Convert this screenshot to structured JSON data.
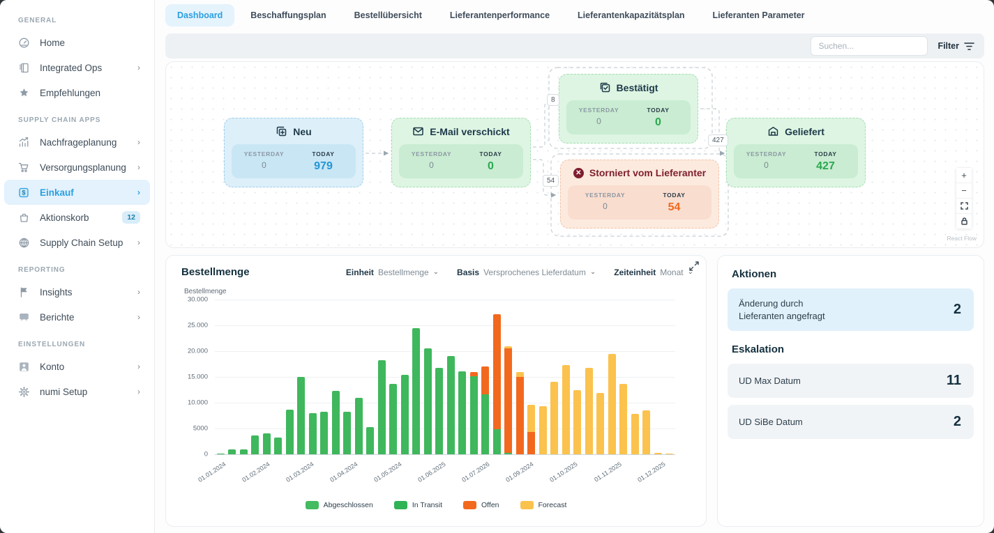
{
  "sidebar": {
    "sections": [
      {
        "label": "GENERAL",
        "items": [
          {
            "label": "Home",
            "icon": "home-icon"
          },
          {
            "label": "Integrated Ops",
            "icon": "integrated-ops-icon",
            "chevron": true
          },
          {
            "label": "Empfehlungen",
            "icon": "recommendations-icon"
          }
        ]
      },
      {
        "label": "SUPPLY CHAIN APPS",
        "items": [
          {
            "label": "Nachfrageplanung",
            "icon": "demand-planning-icon",
            "chevron": true
          },
          {
            "label": "Versorgungsplanung",
            "icon": "supply-planning-icon",
            "chevron": true
          },
          {
            "label": "Einkauf",
            "icon": "purchasing-icon",
            "chevron": true,
            "active": true
          },
          {
            "label": "Aktionskorb",
            "icon": "action-basket-icon",
            "badge": "12"
          },
          {
            "label": "Supply Chain Setup",
            "icon": "globe-icon",
            "chevron": true
          }
        ]
      },
      {
        "label": "REPORTING",
        "items": [
          {
            "label": "Insights",
            "icon": "flag-icon",
            "chevron": true
          },
          {
            "label": "Berichte",
            "icon": "reports-icon",
            "chevron": true
          }
        ]
      },
      {
        "label": "EINSTELLUNGEN",
        "items": [
          {
            "label": "Konto",
            "icon": "account-icon",
            "chevron": true
          },
          {
            "label": "numi Setup",
            "icon": "gear-icon",
            "chevron": true
          }
        ]
      }
    ]
  },
  "tabs": {
    "active_index": 0,
    "items": [
      "Dashboard",
      "Beschaffungsplan",
      "Bestellübersicht",
      "Lieferantenperformance",
      "Lieferantenkapazitätsplan",
      "Lieferanten Parameter"
    ]
  },
  "toolbar": {
    "search_placeholder": "Suchen...",
    "filter_label": "Filter"
  },
  "flow": {
    "labels": {
      "yesterday": "YESTERDAY",
      "today": "TODAY"
    },
    "nodes": [
      {
        "title": "Neu",
        "yesterday": "0",
        "today": "979"
      },
      {
        "title": "E-Mail verschickt",
        "yesterday": "0",
        "today": "0"
      },
      {
        "title": "Bestätigt",
        "yesterday": "0",
        "today": "0"
      },
      {
        "title": "Storniert vom Lieferanter",
        "yesterday": "0",
        "today": "54"
      },
      {
        "title": "Geliefert",
        "yesterday": "0",
        "today": "427"
      }
    ],
    "edge_labels": [
      "8",
      "427",
      "54"
    ],
    "attribution": "React Flow"
  },
  "chart": {
    "title": "Bestellmenge",
    "controls": [
      {
        "label": "Einheit",
        "value": "Bestellmenge"
      },
      {
        "label": "Basis",
        "value": "Versprochenes Lieferdatum"
      },
      {
        "label": "Zeiteinheit",
        "value": "Monat"
      }
    ]
  },
  "chart_data": {
    "type": "bar",
    "stacked": true,
    "title": "Bestellmenge",
    "ylabel": "Bestellmenge",
    "y_max": 30000,
    "y_ticks": [
      {
        "v": 0,
        "l": "0"
      },
      {
        "v": 5000,
        "l": "5000"
      },
      {
        "v": 10000,
        "l": "10.000"
      },
      {
        "v": 15000,
        "l": "15.000"
      },
      {
        "v": 20000,
        "l": "20.000"
      },
      {
        "v": 25000,
        "l": "25.000"
      },
      {
        "v": 30000,
        "l": "30.000"
      }
    ],
    "x_labels": [
      "01.01.2024",
      "01.02.2024",
      "01.03.2024",
      "01.04.2024",
      "01.05.2024",
      "01.06.2025",
      "01.07.2026",
      "01.09.2024",
      "01.10.2025",
      "01.11.2025",
      "01.12.2025"
    ],
    "colors": {
      "g": "#3fb75c",
      "o": "#f2691e",
      "y": "#fbc24d"
    },
    "series_names": {
      "g": "Abgeschlossen / In Transit",
      "o": "Offen",
      "y": "Forecast"
    },
    "bars": [
      {
        "g": 200
      },
      {
        "g": 1000
      },
      {
        "g": 900
      },
      {
        "g": 3600
      },
      {
        "g": 4100
      },
      {
        "g": 3300
      },
      {
        "g": 8600
      },
      {
        "g": 15000
      },
      {
        "g": 8000
      },
      {
        "g": 8300
      },
      {
        "g": 12300
      },
      {
        "g": 8200
      },
      {
        "g": 11000
      },
      {
        "g": 5300
      },
      {
        "g": 18300
      },
      {
        "g": 13700
      },
      {
        "g": 15400
      },
      {
        "g": 24400
      },
      {
        "g": 20500
      },
      {
        "g": 16700
      },
      {
        "g": 19000
      },
      {
        "g": 16100
      },
      {
        "g": 15200,
        "o": 800
      },
      {
        "g": 11600,
        "o": 5400
      },
      {
        "g": 4800,
        "o": 22300
      },
      {
        "g": 300,
        "o": 20200,
        "y": 500
      },
      {
        "o": 15000,
        "y": 1000
      },
      {
        "o": 4300,
        "y": 5300
      },
      {
        "y": 9300
      },
      {
        "y": 14000
      },
      {
        "y": 17300
      },
      {
        "y": 12500
      },
      {
        "y": 16700
      },
      {
        "y": 11900
      },
      {
        "y": 19500
      },
      {
        "y": 13600
      },
      {
        "y": 7800
      },
      {
        "y": 8500
      },
      {
        "y": 300
      },
      {
        "y": 200
      }
    ],
    "legend": [
      {
        "label": "Abgeschlossen",
        "color": "#44bb60"
      },
      {
        "label": "In Transit",
        "color": "#2fb355"
      },
      {
        "label": "Offen",
        "color": "#f2691e"
      },
      {
        "label": "Forecast",
        "color": "#fbc24d"
      }
    ],
    "legend_position": "bottom"
  },
  "actions": {
    "title": "Aktionen",
    "items": [
      {
        "label_line1": "Änderung durch",
        "label_line2": "Lieferanten angefragt",
        "value": "2"
      }
    ],
    "escalation_title": "Eskalation",
    "escalation_items": [
      {
        "label": "UD Max Datum",
        "value": "11"
      },
      {
        "label": "UD SiBe Datum",
        "value": "2"
      }
    ]
  }
}
